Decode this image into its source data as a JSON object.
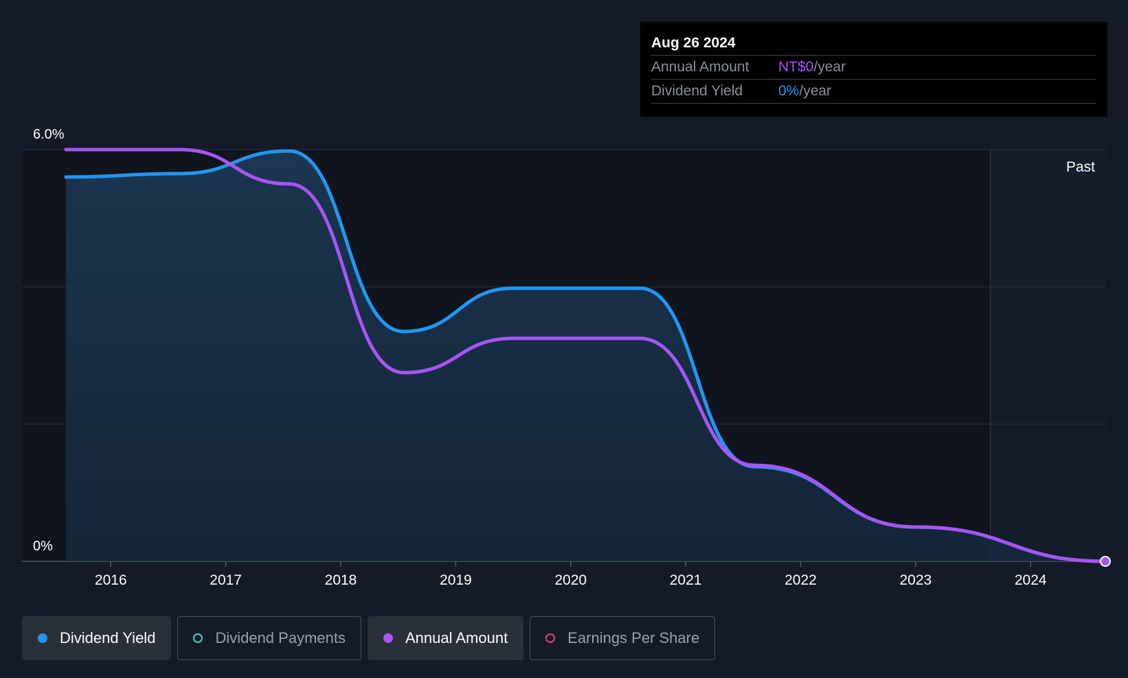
{
  "tooltip": {
    "date": "Aug 26 2024",
    "rows": [
      {
        "label": "Annual Amount",
        "value": "NT$0",
        "unit": "/year",
        "color": "#a855f7"
      },
      {
        "label": "Dividend Yield",
        "value": "0%",
        "unit": "/year",
        "color": "#2196f3"
      }
    ]
  },
  "legend": [
    {
      "label": "Dividend Yield",
      "color": "#2196f3",
      "filled": true,
      "active": true
    },
    {
      "label": "Dividend Payments",
      "color": "#4fd1c5",
      "filled": false,
      "active": false
    },
    {
      "label": "Annual Amount",
      "color": "#a855f7",
      "filled": true,
      "active": true
    },
    {
      "label": "Earnings Per Share",
      "color": "#e0457b",
      "filled": false,
      "active": false
    }
  ],
  "chart_data": {
    "type": "line",
    "y_axis": {
      "top_label": "6.0%",
      "bottom_label": "0%",
      "ylim": [
        0,
        6.0
      ],
      "gridlines": [
        0,
        2.0,
        4.0,
        6.0
      ]
    },
    "x_axis": {
      "ticks": [
        "2016",
        "2017",
        "2018",
        "2019",
        "2020",
        "2021",
        "2022",
        "2023",
        "2024"
      ],
      "xlim": [
        2015.61,
        2024.65
      ]
    },
    "past_label": "Past",
    "past_region_start": 2023.65,
    "series": [
      {
        "name": "Dividend Yield",
        "color": "#2196f3",
        "fill": true,
        "points": [
          [
            2015.61,
            5.6
          ],
          [
            2016.6,
            5.65
          ],
          [
            2017.55,
            5.98
          ],
          [
            2018.55,
            3.35
          ],
          [
            2019.5,
            3.98
          ],
          [
            2020.6,
            3.98
          ],
          [
            2021.6,
            1.38
          ],
          [
            2023.0,
            0.5
          ],
          [
            2024.65,
            0.0
          ]
        ]
      },
      {
        "name": "Annual Amount",
        "color": "#a855f7",
        "fill": false,
        "points": [
          [
            2015.61,
            6.0
          ],
          [
            2016.6,
            6.0
          ],
          [
            2017.55,
            5.5
          ],
          [
            2018.55,
            2.75
          ],
          [
            2019.5,
            3.25
          ],
          [
            2020.6,
            3.25
          ],
          [
            2021.6,
            1.4
          ],
          [
            2023.0,
            0.5
          ],
          [
            2024.65,
            0.0
          ]
        ]
      }
    ]
  }
}
